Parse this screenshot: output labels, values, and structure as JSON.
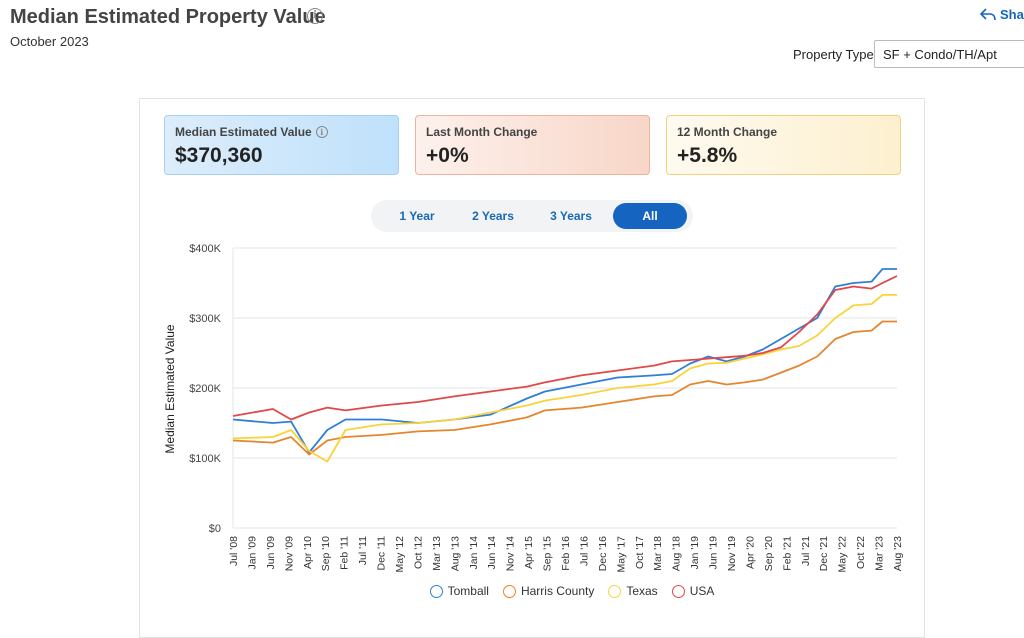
{
  "header": {
    "title": "Median Estimated Property Value",
    "date": "October 2023",
    "share_label": "Sha",
    "property_type_label": "Property Type",
    "property_type_value": "SF + Condo/TH/Apt"
  },
  "cards": [
    {
      "label": "Median Estimated Value",
      "value": "$370,360"
    },
    {
      "label": "Last Month Change",
      "value": "+0%"
    },
    {
      "label": "12 Month Change",
      "value": "+5.8%"
    }
  ],
  "range_buttons": [
    {
      "label": "1 Year",
      "active": false
    },
    {
      "label": "2 Years",
      "active": false
    },
    {
      "label": "3 Years",
      "active": false
    },
    {
      "label": "All",
      "active": true
    }
  ],
  "chart_data": {
    "type": "line",
    "xlabel": "",
    "ylabel": "Median Estimated Value",
    "ylim": [
      0,
      400000
    ],
    "yticks": [
      0,
      100000,
      200000,
      300000,
      400000
    ],
    "ytick_labels": [
      "$0",
      "$100K",
      "$200K",
      "$300K",
      "$400K"
    ],
    "xlim": [
      "2008-07",
      "2023-10"
    ],
    "xtick_labels": [
      "Jul '08",
      "Jan '09",
      "Jun '09",
      "Nov '09",
      "Apr '10",
      "Sep '10",
      "Feb '11",
      "Jul '11",
      "Dec '11",
      "May '12",
      "Oct '12",
      "Mar '13",
      "Aug '13",
      "Jan '14",
      "Jun '14",
      "Nov '14",
      "Apr '15",
      "Sep '15",
      "Feb '16",
      "Jul '16",
      "Dec '16",
      "May '17",
      "Oct '17",
      "Mar '18",
      "Aug '18",
      "Jan '19",
      "Jun '19",
      "Nov '19",
      "Apr '20",
      "Sep '20",
      "Feb '21",
      "Jul '21",
      "Dec '21",
      "May '22",
      "Oct '22",
      "Mar '23",
      "Aug '23"
    ],
    "grid": true,
    "legend_position": "bottom",
    "series": [
      {
        "name": "Tomball",
        "color": "#2f7fd6",
        "points": [
          [
            "2008-07",
            155000
          ],
          [
            "2009-06",
            150000
          ],
          [
            "2009-11",
            152000
          ],
          [
            "2010-04",
            108000
          ],
          [
            "2010-09",
            140000
          ],
          [
            "2011-02",
            155000
          ],
          [
            "2011-12",
            155000
          ],
          [
            "2012-10",
            150000
          ],
          [
            "2013-08",
            155000
          ],
          [
            "2014-06",
            162000
          ],
          [
            "2015-04",
            185000
          ],
          [
            "2015-09",
            195000
          ],
          [
            "2016-07",
            205000
          ],
          [
            "2017-05",
            215000
          ],
          [
            "2018-03",
            218000
          ],
          [
            "2018-08",
            220000
          ],
          [
            "2019-01",
            235000
          ],
          [
            "2019-06",
            245000
          ],
          [
            "2019-11",
            238000
          ],
          [
            "2020-04",
            245000
          ],
          [
            "2020-09",
            255000
          ],
          [
            "2021-02",
            270000
          ],
          [
            "2021-07",
            285000
          ],
          [
            "2021-12",
            300000
          ],
          [
            "2022-05",
            345000
          ],
          [
            "2022-10",
            350000
          ],
          [
            "2023-03",
            352000
          ],
          [
            "2023-06",
            370000
          ],
          [
            "2023-10",
            370000
          ]
        ]
      },
      {
        "name": "Harris County",
        "color": "#e5862f",
        "points": [
          [
            "2008-07",
            125000
          ],
          [
            "2009-06",
            122000
          ],
          [
            "2009-11",
            130000
          ],
          [
            "2010-04",
            105000
          ],
          [
            "2010-09",
            125000
          ],
          [
            "2011-02",
            130000
          ],
          [
            "2011-12",
            133000
          ],
          [
            "2012-10",
            138000
          ],
          [
            "2013-08",
            140000
          ],
          [
            "2014-06",
            148000
          ],
          [
            "2015-04",
            158000
          ],
          [
            "2015-09",
            168000
          ],
          [
            "2016-07",
            172000
          ],
          [
            "2017-05",
            180000
          ],
          [
            "2018-03",
            188000
          ],
          [
            "2018-08",
            190000
          ],
          [
            "2019-01",
            205000
          ],
          [
            "2019-06",
            210000
          ],
          [
            "2019-11",
            205000
          ],
          [
            "2020-04",
            208000
          ],
          [
            "2020-09",
            212000
          ],
          [
            "2021-02",
            222000
          ],
          [
            "2021-07",
            232000
          ],
          [
            "2021-12",
            245000
          ],
          [
            "2022-05",
            270000
          ],
          [
            "2022-10",
            280000
          ],
          [
            "2023-03",
            282000
          ],
          [
            "2023-06",
            295000
          ],
          [
            "2023-10",
            295000
          ]
        ]
      },
      {
        "name": "Texas",
        "color": "#f8d43a",
        "points": [
          [
            "2008-07",
            128000
          ],
          [
            "2009-06",
            130000
          ],
          [
            "2009-11",
            140000
          ],
          [
            "2010-04",
            110000
          ],
          [
            "2010-09",
            95000
          ],
          [
            "2011-02",
            140000
          ],
          [
            "2011-12",
            148000
          ],
          [
            "2012-10",
            150000
          ],
          [
            "2013-08",
            155000
          ],
          [
            "2014-06",
            165000
          ],
          [
            "2015-04",
            175000
          ],
          [
            "2015-09",
            182000
          ],
          [
            "2016-07",
            190000
          ],
          [
            "2017-05",
            200000
          ],
          [
            "2018-03",
            205000
          ],
          [
            "2018-08",
            210000
          ],
          [
            "2019-01",
            228000
          ],
          [
            "2019-06",
            235000
          ],
          [
            "2019-11",
            236000
          ],
          [
            "2020-04",
            242000
          ],
          [
            "2020-09",
            248000
          ],
          [
            "2021-02",
            255000
          ],
          [
            "2021-07",
            260000
          ],
          [
            "2021-12",
            275000
          ],
          [
            "2022-05",
            300000
          ],
          [
            "2022-10",
            318000
          ],
          [
            "2023-03",
            320000
          ],
          [
            "2023-06",
            333000
          ],
          [
            "2023-10",
            333000
          ]
        ]
      },
      {
        "name": "USA",
        "color": "#e14848",
        "points": [
          [
            "2008-07",
            160000
          ],
          [
            "2009-06",
            170000
          ],
          [
            "2009-11",
            155000
          ],
          [
            "2010-04",
            165000
          ],
          [
            "2010-09",
            172000
          ],
          [
            "2011-02",
            168000
          ],
          [
            "2011-12",
            175000
          ],
          [
            "2012-10",
            180000
          ],
          [
            "2013-08",
            188000
          ],
          [
            "2014-06",
            195000
          ],
          [
            "2015-04",
            202000
          ],
          [
            "2015-09",
            208000
          ],
          [
            "2016-07",
            218000
          ],
          [
            "2017-05",
            225000
          ],
          [
            "2018-03",
            232000
          ],
          [
            "2018-08",
            238000
          ],
          [
            "2019-01",
            240000
          ],
          [
            "2019-06",
            242000
          ],
          [
            "2019-11",
            244000
          ],
          [
            "2020-04",
            246000
          ],
          [
            "2020-09",
            250000
          ],
          [
            "2021-02",
            258000
          ],
          [
            "2021-07",
            280000
          ],
          [
            "2021-12",
            305000
          ],
          [
            "2022-05",
            340000
          ],
          [
            "2022-10",
            345000
          ],
          [
            "2023-03",
            342000
          ],
          [
            "2023-06",
            350000
          ],
          [
            "2023-10",
            360000
          ]
        ]
      }
    ]
  }
}
